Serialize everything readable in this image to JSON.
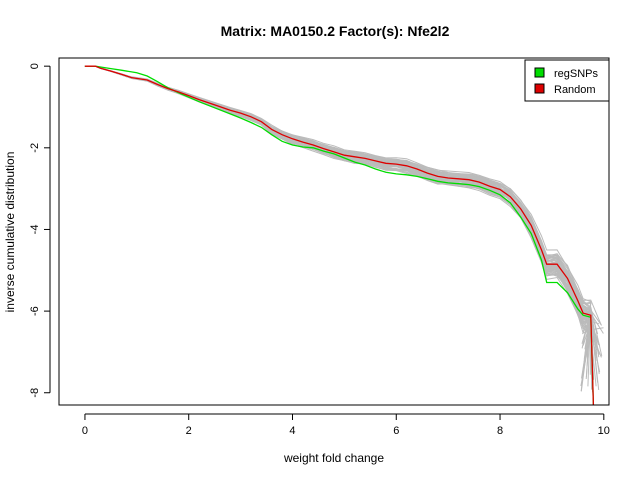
{
  "chart_data": {
    "type": "line",
    "title": "Matrix: MA0150.2 Factor(s): Nfe2l2",
    "xlabel": "weight fold change",
    "ylabel": "inverse cumulative distribution",
    "xlim": [
      -0.5,
      10.1
    ],
    "ylim": [
      -8.3,
      0.2
    ],
    "xticks": [
      0,
      2,
      4,
      6,
      8,
      10
    ],
    "yticks": [
      0,
      -2,
      -4,
      -6,
      -8
    ],
    "legend": {
      "position": "top-right",
      "entries": [
        {
          "label": "regSNPs",
          "color": "#00dd00"
        },
        {
          "label": "Random",
          "color": "#dd0000"
        }
      ]
    },
    "background_series": {
      "count": 60,
      "color": "#bbbbbb",
      "description": "random background samples"
    },
    "series": [
      {
        "name": "regSNPs",
        "color": "#00dd00",
        "points": [
          [
            0,
            0
          ],
          [
            0.2,
            0
          ],
          [
            0.3,
            -0.02
          ],
          [
            0.5,
            -0.06
          ],
          [
            0.7,
            -0.1
          ],
          [
            1.0,
            -0.16
          ],
          [
            1.2,
            -0.24
          ],
          [
            1.4,
            -0.38
          ],
          [
            1.6,
            -0.53
          ],
          [
            1.8,
            -0.65
          ],
          [
            2.0,
            -0.76
          ],
          [
            2.2,
            -0.87
          ],
          [
            2.5,
            -1.02
          ],
          [
            2.8,
            -1.17
          ],
          [
            3.0,
            -1.27
          ],
          [
            3.2,
            -1.38
          ],
          [
            3.4,
            -1.5
          ],
          [
            3.6,
            -1.68
          ],
          [
            3.8,
            -1.84
          ],
          [
            4.0,
            -1.93
          ],
          [
            4.2,
            -1.98
          ],
          [
            4.4,
            -2.0
          ],
          [
            4.6,
            -2.08
          ],
          [
            4.8,
            -2.15
          ],
          [
            5.0,
            -2.25
          ],
          [
            5.2,
            -2.35
          ],
          [
            5.4,
            -2.42
          ],
          [
            5.6,
            -2.52
          ],
          [
            5.8,
            -2.6
          ],
          [
            6.0,
            -2.64
          ],
          [
            6.2,
            -2.66
          ],
          [
            6.4,
            -2.7
          ],
          [
            6.6,
            -2.76
          ],
          [
            6.8,
            -2.82
          ],
          [
            7.0,
            -2.86
          ],
          [
            7.2,
            -2.88
          ],
          [
            7.4,
            -2.9
          ],
          [
            7.6,
            -2.95
          ],
          [
            7.8,
            -3.04
          ],
          [
            8.0,
            -3.15
          ],
          [
            8.2,
            -3.35
          ],
          [
            8.4,
            -3.7
          ],
          [
            8.6,
            -4.1
          ],
          [
            8.8,
            -4.75
          ],
          [
            8.9,
            -5.3
          ],
          [
            9.1,
            -5.3
          ],
          [
            9.3,
            -5.55
          ],
          [
            9.5,
            -5.95
          ],
          [
            9.6,
            -6.1
          ],
          [
            9.75,
            -6.15
          ],
          [
            9.8,
            -8.3
          ]
        ]
      },
      {
        "name": "Random",
        "color": "#dd0000",
        "points": [
          [
            0,
            0
          ],
          [
            0.2,
            0
          ],
          [
            0.3,
            -0.05
          ],
          [
            0.5,
            -0.12
          ],
          [
            0.7,
            -0.2
          ],
          [
            0.9,
            -0.28
          ],
          [
            1.2,
            -0.34
          ],
          [
            1.4,
            -0.45
          ],
          [
            1.6,
            -0.55
          ],
          [
            1.8,
            -0.63
          ],
          [
            2.0,
            -0.72
          ],
          [
            2.2,
            -0.82
          ],
          [
            2.5,
            -0.95
          ],
          [
            2.8,
            -1.08
          ],
          [
            3.0,
            -1.15
          ],
          [
            3.2,
            -1.24
          ],
          [
            3.4,
            -1.36
          ],
          [
            3.6,
            -1.55
          ],
          [
            3.8,
            -1.68
          ],
          [
            4.0,
            -1.78
          ],
          [
            4.2,
            -1.86
          ],
          [
            4.4,
            -1.93
          ],
          [
            4.6,
            -2.02
          ],
          [
            4.8,
            -2.1
          ],
          [
            5.0,
            -2.18
          ],
          [
            5.2,
            -2.22
          ],
          [
            5.4,
            -2.26
          ],
          [
            5.6,
            -2.32
          ],
          [
            5.8,
            -2.38
          ],
          [
            6.0,
            -2.4
          ],
          [
            6.2,
            -2.44
          ],
          [
            6.4,
            -2.52
          ],
          [
            6.6,
            -2.62
          ],
          [
            6.8,
            -2.7
          ],
          [
            7.0,
            -2.74
          ],
          [
            7.2,
            -2.76
          ],
          [
            7.4,
            -2.78
          ],
          [
            7.6,
            -2.84
          ],
          [
            7.8,
            -2.94
          ],
          [
            8.0,
            -3.02
          ],
          [
            8.2,
            -3.2
          ],
          [
            8.4,
            -3.5
          ],
          [
            8.6,
            -3.9
          ],
          [
            8.8,
            -4.5
          ],
          [
            8.9,
            -4.85
          ],
          [
            9.1,
            -4.85
          ],
          [
            9.3,
            -5.2
          ],
          [
            9.5,
            -5.75
          ],
          [
            9.6,
            -6.05
          ],
          [
            9.75,
            -6.1
          ],
          [
            9.8,
            -8.3
          ]
        ]
      }
    ]
  }
}
